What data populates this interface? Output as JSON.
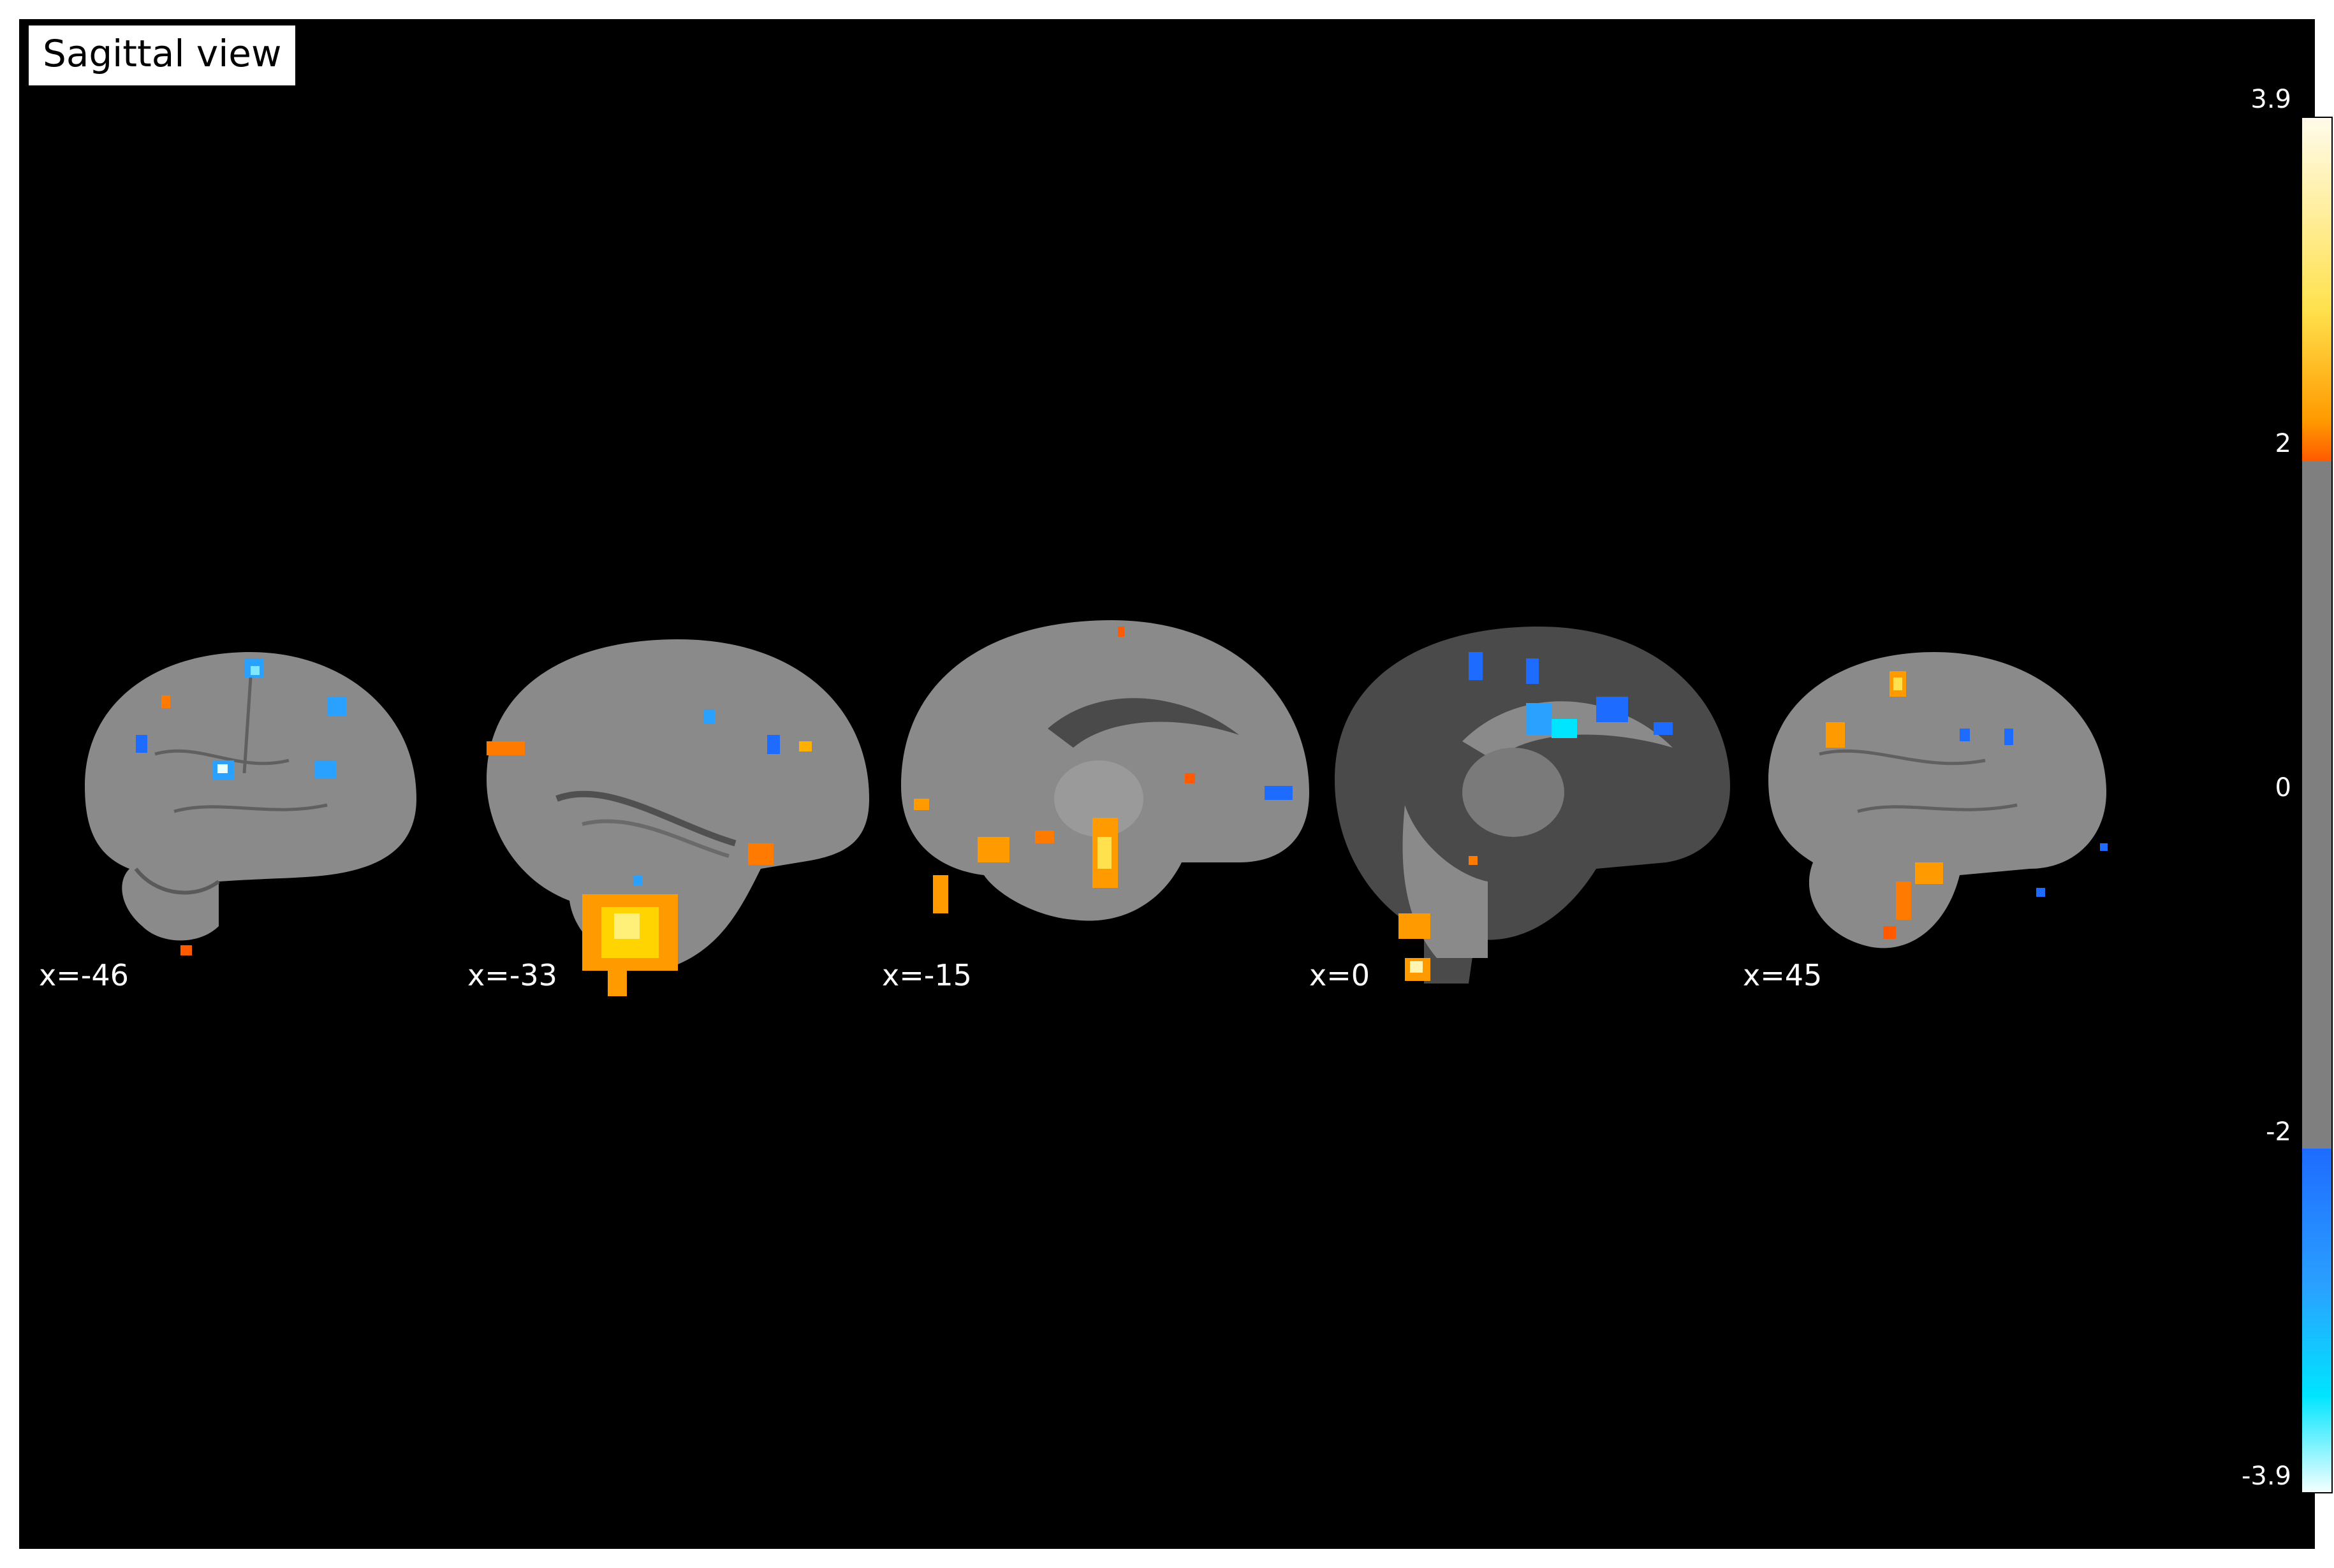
{
  "title": "Sagittal view",
  "slices": [
    {
      "label": "x=-46"
    },
    {
      "label": "x=-33"
    },
    {
      "label": "x=-15"
    },
    {
      "label": "x=0"
    },
    {
      "label": "x=45"
    }
  ],
  "colorbar": {
    "ticks": [
      "3.9",
      "2",
      "0",
      "-2",
      "-3.9"
    ],
    "vmax": 3.9,
    "threshold": 2,
    "vmin": -3.9,
    "colormap_colors": {
      "positive": "#ff9a00",
      "positive_peak": "#ffef60",
      "negative": "#1e6bff",
      "negative_peak": "#00e5ff",
      "neutral": "#7f7f7f"
    }
  },
  "colors": {
    "background": "#000000",
    "brain": "#8a8a8a",
    "brain_dark": "#4a4a4a"
  }
}
